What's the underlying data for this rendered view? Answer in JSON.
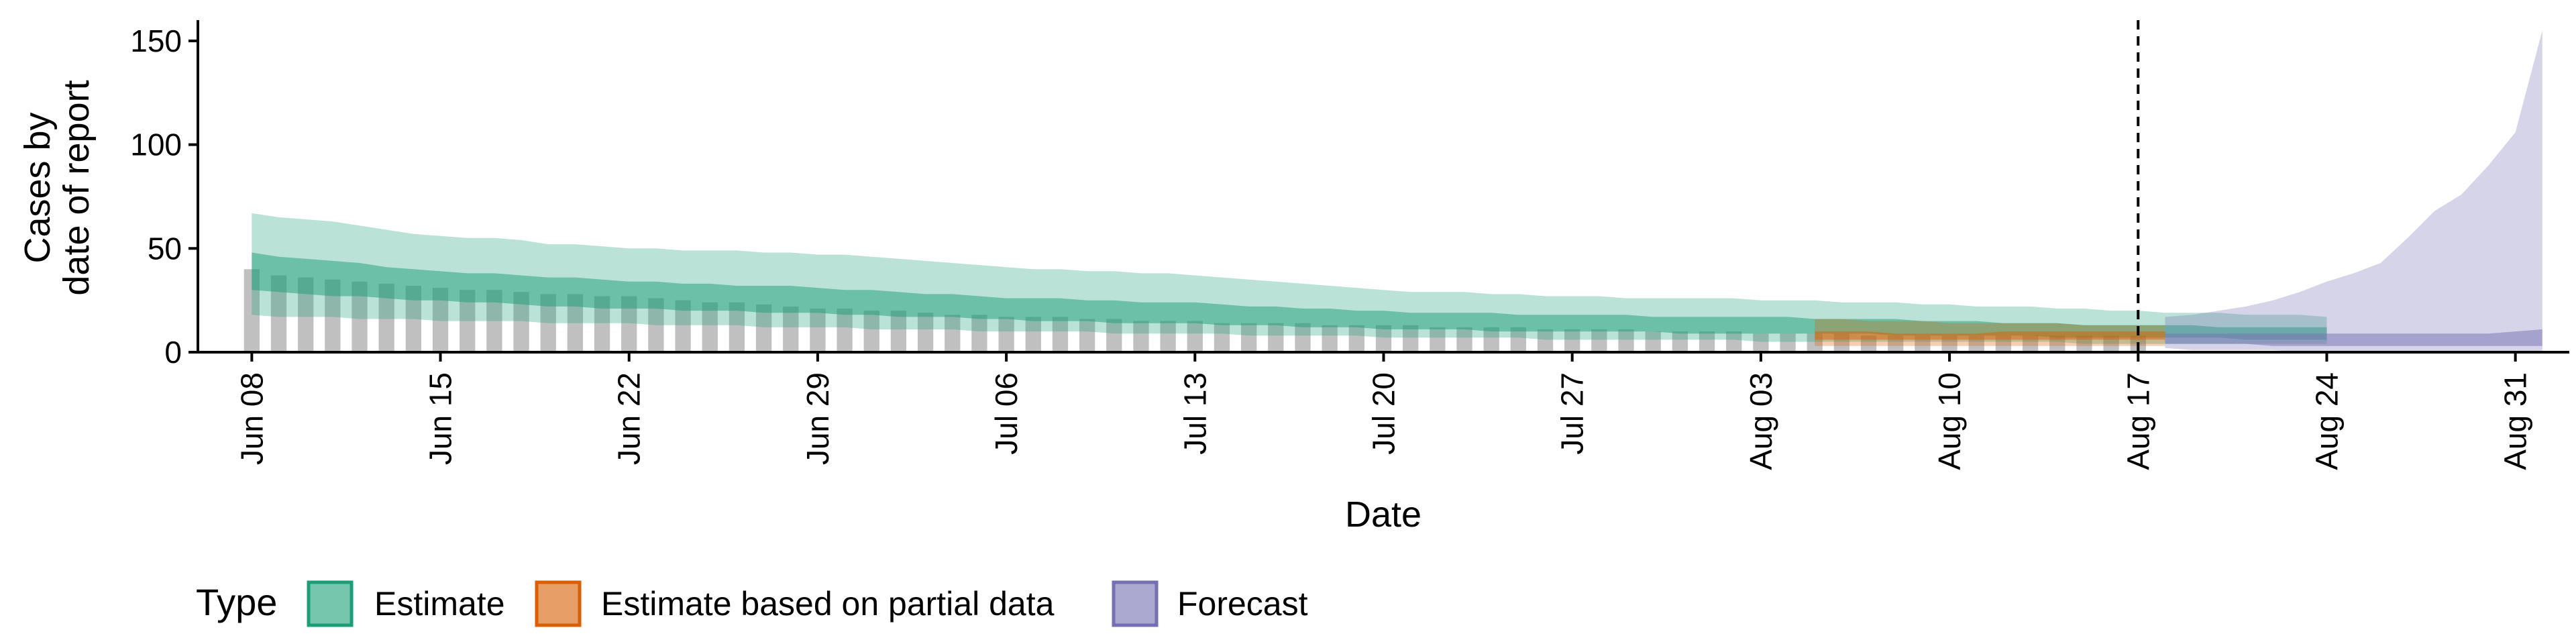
{
  "chart_data": {
    "type": "area",
    "xlabel": "Date",
    "ylabel_lines": [
      "Cases by",
      "date of report"
    ],
    "x_ticks": [
      "Jun 08",
      "Jun 15",
      "Jun 22",
      "Jun 29",
      "Jul 06",
      "Jul 13",
      "Jul 20",
      "Jul 27",
      "Aug 03",
      "Aug 10",
      "Aug 17",
      "Aug 24",
      "Aug 31"
    ],
    "y_ticks": [
      "0",
      "50",
      "100",
      "150"
    ],
    "ylim": [
      0,
      160
    ],
    "x_range_dates": [
      "2020-06-06",
      "2020-09-02"
    ],
    "vline_date": "2020-08-17",
    "legend": {
      "title": "Type",
      "position": "bottom",
      "items": [
        {
          "label": "Estimate",
          "color": "#1b9e77"
        },
        {
          "label": "Estimate based on partial data",
          "color": "#d95f02"
        },
        {
          "label": "Forecast",
          "color": "#7570b3"
        }
      ]
    },
    "reported_cases": {
      "start_date": "2020-06-08",
      "color": "#bdbdbd",
      "values": [
        40,
        37,
        36,
        35,
        34,
        33,
        32,
        31,
        30,
        30,
        29,
        28,
        28,
        27,
        27,
        26,
        25,
        24,
        24,
        23,
        22,
        21,
        21,
        20,
        20,
        19,
        18,
        18,
        17,
        17,
        17,
        16,
        16,
        15,
        15,
        15,
        14,
        14,
        14,
        14,
        13,
        13,
        13,
        13,
        12,
        12,
        12,
        12,
        11,
        11,
        11,
        11,
        10,
        10,
        10,
        10,
        9,
        9,
        9,
        9,
        8,
        8,
        8,
        8,
        8,
        8,
        8,
        8,
        8,
        8,
        8
      ]
    },
    "series": [
      {
        "name": "Estimate",
        "color": "#1b9e77",
        "start_date": "2020-06-08",
        "outer_upper": [
          67,
          65,
          64,
          63,
          61,
          59,
          57,
          56,
          55,
          55,
          54,
          52,
          52,
          51,
          50,
          50,
          49,
          49,
          49,
          48,
          48,
          47,
          47,
          46,
          45,
          44,
          43,
          42,
          41,
          40,
          40,
          39,
          39,
          38,
          38,
          37,
          36,
          35,
          34,
          33,
          32,
          31,
          30,
          29,
          29,
          29,
          28,
          28,
          27,
          27,
          27,
          26,
          26,
          26,
          26,
          26,
          25,
          25,
          25,
          24,
          24,
          24,
          23,
          23,
          22,
          22,
          22,
          21,
          21,
          20,
          20,
          19,
          19,
          19,
          18,
          18,
          18,
          17
        ],
        "inner_upper": [
          48,
          46,
          45,
          44,
          43,
          41,
          40,
          39,
          38,
          38,
          37,
          36,
          36,
          35,
          34,
          34,
          33,
          33,
          32,
          32,
          32,
          31,
          30,
          30,
          29,
          28,
          28,
          27,
          26,
          26,
          26,
          25,
          25,
          24,
          24,
          24,
          23,
          22,
          22,
          21,
          21,
          20,
          20,
          19,
          19,
          19,
          19,
          18,
          18,
          18,
          18,
          18,
          17,
          17,
          17,
          17,
          17,
          17,
          16,
          16,
          16,
          16,
          15,
          15,
          15,
          14,
          14,
          14,
          13,
          13,
          13,
          13,
          13,
          12,
          12,
          12,
          12,
          12
        ],
        "inner_lower": [
          30,
          29,
          28,
          27,
          27,
          26,
          25,
          25,
          24,
          24,
          23,
          22,
          22,
          21,
          21,
          21,
          20,
          20,
          20,
          19,
          19,
          19,
          18,
          18,
          17,
          17,
          17,
          16,
          16,
          15,
          15,
          15,
          14,
          14,
          14,
          14,
          13,
          13,
          13,
          12,
          12,
          12,
          11,
          11,
          11,
          11,
          10,
          10,
          10,
          10,
          10,
          10,
          10,
          9,
          9,
          9,
          9,
          9,
          9,
          9,
          9,
          8,
          8,
          8,
          8,
          8,
          8,
          7,
          7,
          7,
          7,
          7,
          7,
          7,
          6,
          6,
          6,
          6
        ],
        "outer_lower": [
          18,
          17,
          17,
          17,
          16,
          16,
          16,
          15,
          15,
          15,
          15,
          14,
          14,
          14,
          14,
          13,
          13,
          13,
          13,
          12,
          12,
          12,
          12,
          11,
          11,
          11,
          11,
          10,
          10,
          10,
          10,
          10,
          9,
          9,
          9,
          9,
          9,
          8,
          8,
          8,
          8,
          8,
          7,
          7,
          7,
          7,
          7,
          7,
          6,
          6,
          6,
          6,
          6,
          6,
          6,
          6,
          5,
          5,
          5,
          5,
          5,
          5,
          5,
          5,
          5,
          5,
          5,
          5,
          4,
          4,
          4,
          4,
          4,
          4,
          4,
          4,
          4,
          4
        ]
      },
      {
        "name": "Estimate based on partial data",
        "color": "#d95f02",
        "start_date": "2020-08-05",
        "outer_upper": [
          16,
          16,
          15,
          15,
          15,
          14,
          14,
          14,
          14,
          14,
          13,
          13,
          13,
          13
        ],
        "inner_upper": [
          10,
          10,
          10,
          9,
          9,
          9,
          9,
          10,
          10,
          10,
          10,
          10,
          10,
          10
        ],
        "inner_lower": [
          6,
          6,
          6,
          6,
          6,
          6,
          6,
          6,
          6,
          6,
          6,
          6,
          6,
          6
        ],
        "outer_lower": [
          3,
          3,
          3,
          3,
          3,
          3,
          3,
          3,
          3,
          3,
          3,
          3,
          3,
          3
        ]
      },
      {
        "name": "Forecast",
        "color": "#7570b3",
        "start_date": "2020-08-18",
        "outer_upper": [
          17,
          18,
          20,
          22,
          25,
          29,
          34,
          38,
          43,
          55,
          68,
          76,
          90,
          106,
          155
        ],
        "inner_upper": [
          9,
          9,
          9,
          9,
          9,
          9,
          9,
          9,
          9,
          9,
          9,
          9,
          9,
          10,
          11
        ],
        "inner_lower": [
          4,
          4,
          4,
          4,
          3,
          3,
          3,
          3,
          3,
          3,
          3,
          3,
          3,
          3,
          3
        ],
        "outer_lower": [
          2,
          1,
          1,
          1,
          1,
          0,
          0,
          0,
          0,
          0,
          0,
          0,
          0,
          0,
          0
        ]
      }
    ]
  }
}
